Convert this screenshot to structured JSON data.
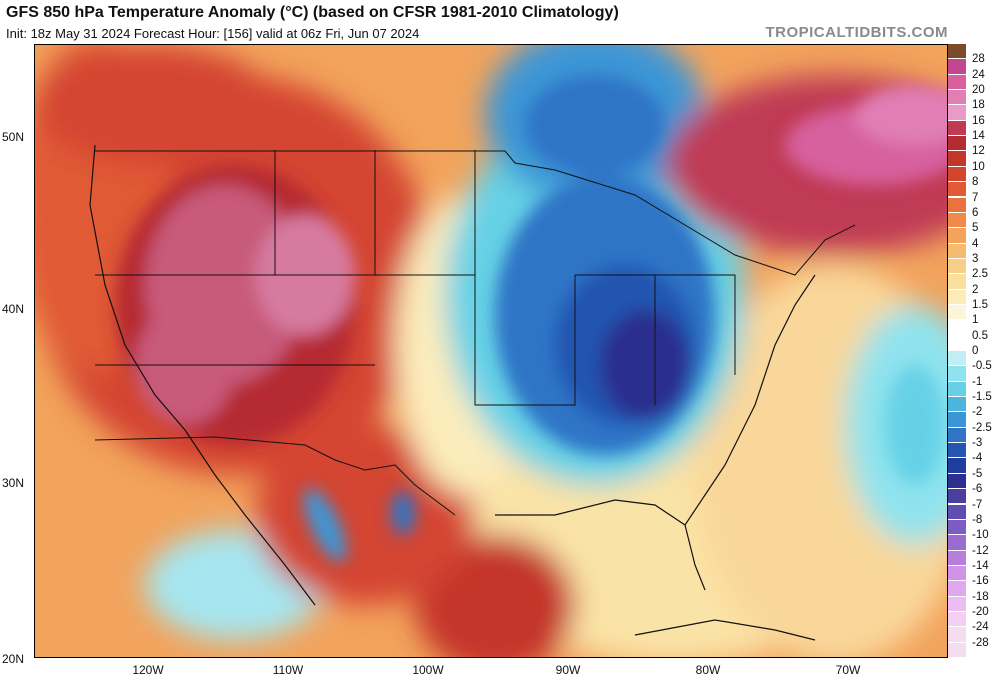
{
  "header": {
    "title": "GFS 850 hPa Temperature Anomaly (°C) (based on CFSR 1981-2010 Climatology)",
    "subtitle": "Init: 18z May 31 2024   Forecast Hour: [156]   valid at 06z Fri, Jun 07 2024",
    "brand": "TROPICALTIDBITS.COM"
  },
  "axes": {
    "lat_labels": [
      "50N",
      "40N",
      "30N",
      "20N"
    ],
    "lon_labels": [
      "120W",
      "110W",
      "100W",
      "90W",
      "80W",
      "70W"
    ]
  },
  "colorbar": {
    "labels": [
      "28",
      "24",
      "20",
      "18",
      "16",
      "14",
      "12",
      "10",
      "8",
      "7",
      "6",
      "5",
      "4",
      "3",
      "2.5",
      "2",
      "1.5",
      "1",
      "0.5",
      "0",
      "-0.5",
      "-1",
      "-1.5",
      "-2",
      "-2.5",
      "-3",
      "-4",
      "-5",
      "-6",
      "-7",
      "-8",
      "-10",
      "-12",
      "-14",
      "-16",
      "-18",
      "-20",
      "-24",
      "-28"
    ],
    "colors": [
      "#7a4a2a",
      "#c2478f",
      "#d7609f",
      "#e17fb5",
      "#ea9ac8",
      "#c03a54",
      "#b52b32",
      "#c4352c",
      "#d44530",
      "#e05a36",
      "#e8733f",
      "#ef8b4a",
      "#f3a45a",
      "#f6bb6e",
      "#f8cf86",
      "#fae09f",
      "#fcecbc",
      "#fdf5d8",
      "#ffffff",
      "#ffffff",
      "#bfeff5",
      "#8fe3ee",
      "#66d1e6",
      "#4cb5df",
      "#3c96d6",
      "#2f74c6",
      "#2455b0",
      "#1f3d9a",
      "#2c2f8f",
      "#4a3ea0",
      "#5f4db0",
      "#7b5cc0",
      "#9a6bd0",
      "#b77ede",
      "#cf93e8",
      "#e0a8ef",
      "#ebbdf3",
      "#f2d0f4",
      "#f6dcef"
    ]
  },
  "map": {
    "features": [
      "warm-anomaly-west",
      "cold-anomaly-central-east",
      "warm-anomaly-northeast-canada",
      "warm-anomaly-gulf",
      "cool-anomaly-pacific",
      "cool-anomaly-atlantic"
    ]
  }
}
